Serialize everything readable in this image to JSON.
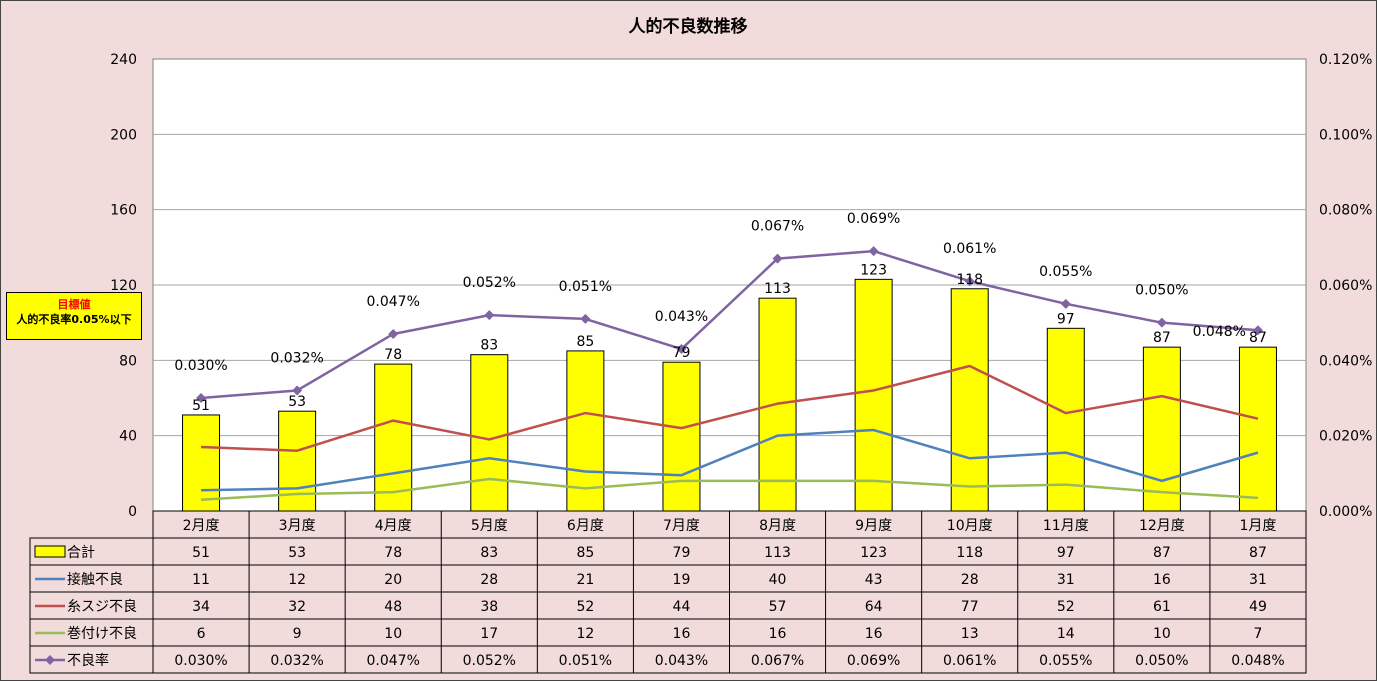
{
  "chart_data": {
    "type": "bar",
    "title": "人的不良数推移",
    "categories": [
      "2月度",
      "3月度",
      "4月度",
      "5月度",
      "6月度",
      "7月度",
      "8月度",
      "9月度",
      "10月度",
      "11月度",
      "12月度",
      "1月度"
    ],
    "left_axis": {
      "ylim": [
        0,
        240
      ],
      "ticks": [
        "0",
        "40",
        "80",
        "120",
        "160",
        "200",
        "240"
      ]
    },
    "right_axis": {
      "ylim": [
        0,
        0.12
      ],
      "ticks": [
        "0.000%",
        "0.020%",
        "0.040%",
        "0.060%",
        "0.080%",
        "0.100%",
        "0.120%"
      ]
    },
    "grid": "horizontal",
    "series": [
      {
        "name": "合計",
        "type": "bar",
        "axis": "left",
        "color": "#ffff00",
        "values": [
          51,
          53,
          78,
          83,
          85,
          79,
          113,
          123,
          118,
          97,
          87,
          87
        ],
        "labels": [
          "51",
          "53",
          "78",
          "83",
          "85",
          "79",
          "113",
          "123",
          "118",
          "97",
          "87",
          "87"
        ]
      },
      {
        "name": "接触不良",
        "type": "line",
        "axis": "left",
        "color": "#4f81bd",
        "values": [
          11,
          12,
          20,
          28,
          21,
          19,
          40,
          43,
          28,
          31,
          16,
          31
        ],
        "labels": [
          "11",
          "12",
          "20",
          "28",
          "21",
          "19",
          "40",
          "43",
          "28",
          "31",
          "16",
          "31"
        ]
      },
      {
        "name": "糸スジ不良",
        "type": "line",
        "axis": "left",
        "color": "#c0504d",
        "values": [
          34,
          32,
          48,
          38,
          52,
          44,
          57,
          64,
          77,
          52,
          61,
          49
        ],
        "labels": [
          "34",
          "32",
          "48",
          "38",
          "52",
          "44",
          "57",
          "64",
          "77",
          "52",
          "61",
          "49"
        ]
      },
      {
        "name": "巻付け不良",
        "type": "line",
        "axis": "left",
        "color": "#9bbb59",
        "values": [
          6,
          9,
          10,
          17,
          12,
          16,
          16,
          16,
          13,
          14,
          10,
          7
        ],
        "labels": [
          "6",
          "9",
          "10",
          "17",
          "12",
          "16",
          "16",
          "16",
          "13",
          "14",
          "10",
          "7"
        ]
      },
      {
        "name": "不良率",
        "type": "line",
        "axis": "right",
        "color": "#8064a2",
        "marker": "diamond",
        "values": [
          0.03,
          0.032,
          0.047,
          0.052,
          0.051,
          0.043,
          0.067,
          0.069,
          0.061,
          0.055,
          0.05,
          0.048
        ],
        "labels": [
          "0.030%",
          "0.032%",
          "0.047%",
          "0.052%",
          "0.051%",
          "0.043%",
          "0.067%",
          "0.069%",
          "0.061%",
          "0.055%",
          "0.050%",
          "0.048%"
        ]
      }
    ]
  },
  "target_box": {
    "title": "目標値",
    "text": "人的不良率0.05%以下"
  }
}
